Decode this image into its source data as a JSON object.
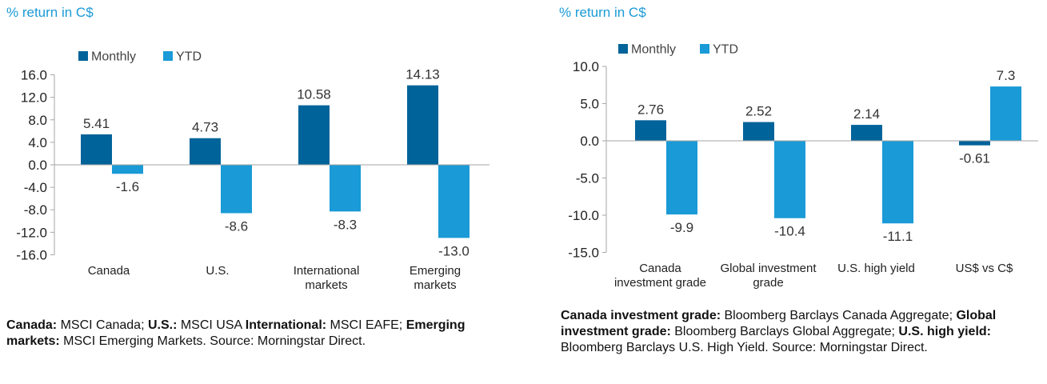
{
  "colors": {
    "monthly": "#00639a",
    "ytd": "#1a9ad6",
    "subtitle": "#1a9ad6",
    "axis": "#a6a6a6",
    "text": "#333333"
  },
  "chart_data": [
    {
      "type": "bar",
      "title": "% return in C$",
      "legend": [
        "Monthly",
        "YTD"
      ],
      "categories": [
        [
          "Canada"
        ],
        [
          "U.S."
        ],
        [
          "International",
          "markets"
        ],
        [
          "Emerging",
          "markets"
        ]
      ],
      "series": [
        {
          "name": "Monthly",
          "values": [
            5.41,
            4.73,
            10.58,
            14.13
          ],
          "labels": [
            "5.41",
            "4.73",
            "10.58",
            "14.13"
          ]
        },
        {
          "name": "YTD",
          "values": [
            -1.6,
            -8.6,
            -8.3,
            -13.0
          ],
          "labels": [
            "-1.6",
            "-8.6",
            "-8.3",
            "-13.0"
          ]
        }
      ],
      "yticks": [
        16,
        12,
        8,
        4,
        0,
        -4,
        -8,
        -12,
        -16
      ],
      "ytick_labels": [
        "16.0",
        "12.0",
        "8.0",
        "4.0",
        "0.0",
        "-4.0",
        "-8.0",
        "-12.0",
        "-16.0"
      ],
      "ylim": [
        -16,
        16
      ],
      "grid": false
    },
    {
      "type": "bar",
      "title": "% return in C$",
      "legend": [
        "Monthly",
        "YTD"
      ],
      "categories": [
        [
          "Canada",
          "investment grade"
        ],
        [
          "Global investment",
          "grade"
        ],
        [
          "U.S. high yield"
        ],
        [
          "US$ vs C$"
        ]
      ],
      "series": [
        {
          "name": "Monthly",
          "values": [
            2.76,
            2.52,
            2.14,
            -0.61
          ],
          "labels": [
            "2.76",
            "2.52",
            "2.14",
            "-0.61"
          ]
        },
        {
          "name": "YTD",
          "values": [
            -9.9,
            -10.4,
            -11.1,
            7.3
          ],
          "labels": [
            "-9.9",
            "-10.4",
            "-11.1",
            "7.3"
          ]
        }
      ],
      "yticks": [
        10,
        5,
        0,
        -5,
        -10,
        -15
      ],
      "ytick_labels": [
        "10.0",
        "5.0",
        "0.0",
        "-5.0",
        "-10.0",
        "-15.0"
      ],
      "ylim": [
        -15,
        10
      ],
      "grid": false
    }
  ],
  "captions": {
    "left": [
      {
        "bold": "Canada:",
        "text": " MSCI Canada; "
      },
      {
        "bold": "U.S.:",
        "text": " MSCI USA "
      },
      {
        "bold": "International:",
        "text": " MSCI EAFE; "
      },
      {
        "bold": "Emerging markets:",
        "text": " MSCI Emerging Markets. Source: Morningstar Direct."
      }
    ],
    "right": [
      {
        "bold": "Canada investment grade:",
        "text": " Bloomberg Barclays Canada Aggregate; "
      },
      {
        "bold": "Global investment grade:",
        "text": " Bloomberg Barclays Global Aggregate; "
      },
      {
        "bold": "U.S. high yield:",
        "text": " Bloomberg Barclays U.S. High Yield. Source: Morningstar Direct."
      }
    ]
  }
}
